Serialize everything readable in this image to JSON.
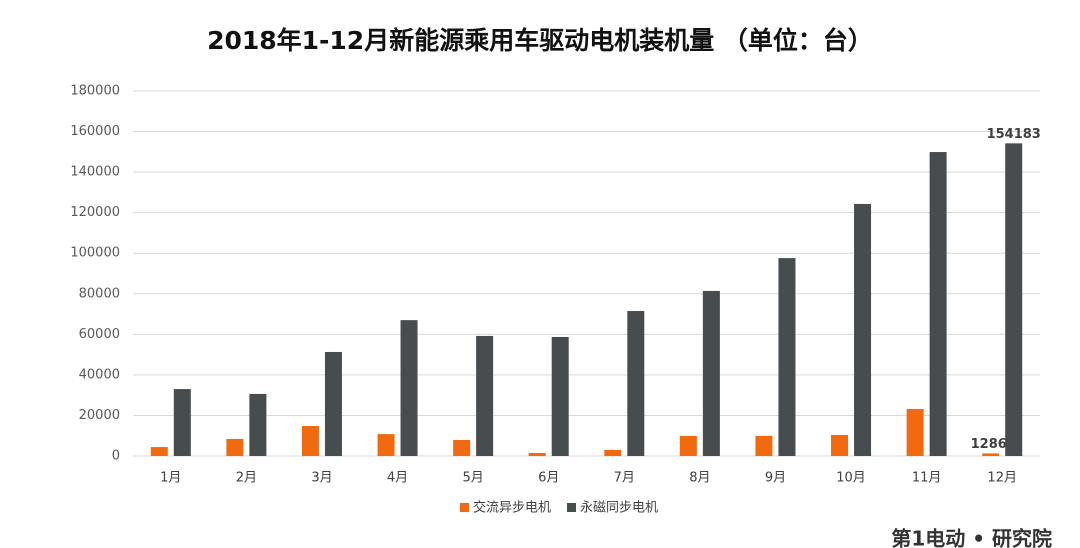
{
  "chart_data": {
    "type": "bar",
    "title": "2018年1-12月新能源乘用车驱动电机装机量 （单位：台）",
    "categories": [
      "1月",
      "2月",
      "3月",
      "4月",
      "5月",
      "6月",
      "7月",
      "8月",
      "9月",
      "10月",
      "11月",
      "12月"
    ],
    "series": [
      {
        "name": "交流异步电机",
        "color": "#f26a10",
        "values": [
          4400,
          8400,
          14800,
          10800,
          7900,
          1500,
          3000,
          9900,
          9900,
          10400,
          23200,
          1286
        ],
        "value_labels": [
          null,
          null,
          null,
          null,
          null,
          null,
          null,
          null,
          null,
          null,
          null,
          "1286"
        ]
      },
      {
        "name": "永磁同步电机",
        "color": "#474c4f",
        "values": [
          33000,
          30600,
          51300,
          67000,
          59200,
          58700,
          71500,
          81400,
          97600,
          124300,
          149900,
          154183
        ],
        "value_labels": [
          null,
          null,
          null,
          null,
          null,
          null,
          null,
          null,
          null,
          null,
          null,
          "154183"
        ]
      }
    ],
    "ylim": [
      0,
      180000
    ],
    "yticks": [
      0,
      20000,
      40000,
      60000,
      80000,
      100000,
      120000,
      140000,
      160000,
      180000
    ],
    "grid": true,
    "legend": "bottom",
    "watermark": "第1电动 • 研究院"
  }
}
